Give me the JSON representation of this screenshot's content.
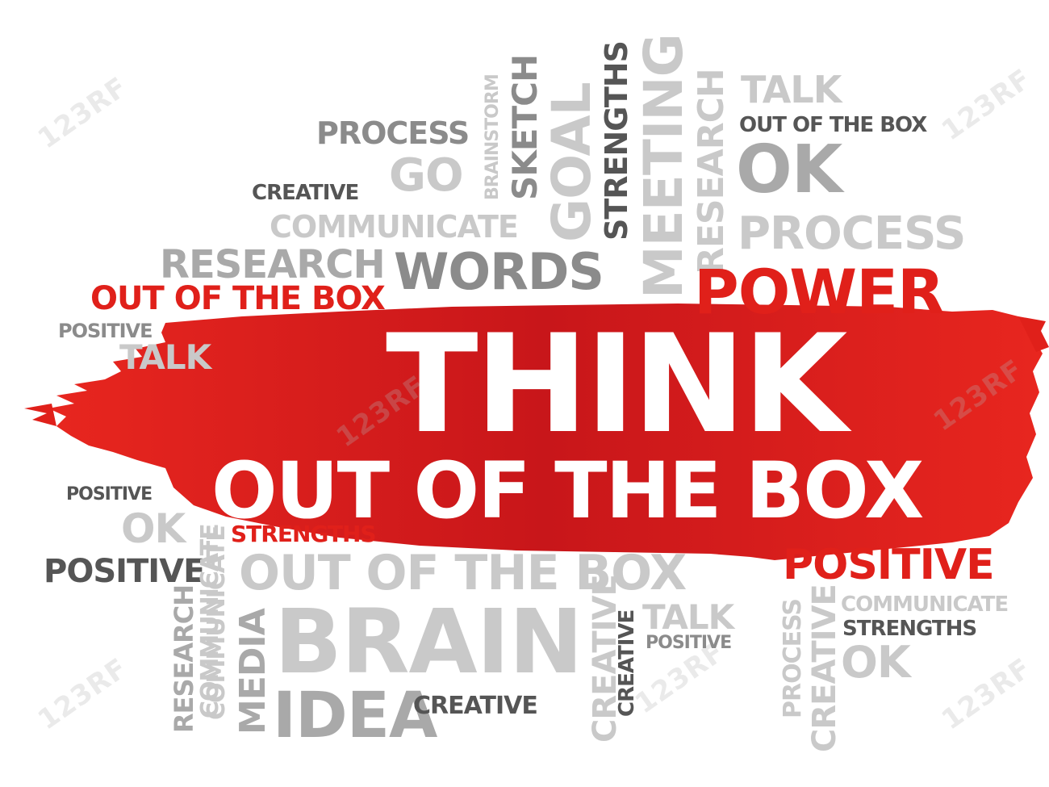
{
  "colors": {
    "red": "#e0201a",
    "dark": "#555555",
    "mid": "#8b8b8b",
    "light": "#c9c9c9",
    "white": "#ffffff"
  },
  "headline": {
    "line1": "THINK",
    "line2": "OUT OF THE BOX"
  },
  "watermark": "123RF",
  "words": {
    "process_top": "PROCESS",
    "go": "GO",
    "brainstorm": "BRAINSTORM",
    "sketch": "SKETCH",
    "goal": "GOAL",
    "strengths_v": "STRENGTHS",
    "meeting": "MEETING",
    "research_v": "RESEARCH",
    "talk_top": "TALK",
    "ootb_top": "OUT OF THE BOX",
    "ok_top": "OK",
    "creative_top": "CREATIVE",
    "communicate_top": "COMMUNICATE",
    "process_right": "PROCESS",
    "research_mid": "RESEARCH",
    "words": "WORDS",
    "power": "POWER",
    "ootb_red": "OUT OF THE BOX",
    "positive_left": "POSITIVE",
    "talk_left": "TALK",
    "positive_small": "POSITIVE",
    "ok_left": "OK",
    "strengths_red": "STRENGTHS",
    "positive_dark": "POSITIVE",
    "communicate_v": "COMMUNICATE",
    "research_v2": "RESEARCH",
    "communicate_v2": "COMMUNICATE",
    "media": "MEDIA",
    "ootb_gray": "OUT OF THE BOX",
    "brain": "BRAIN",
    "idea": "IDEA",
    "creative_bottom": "CREATIVE",
    "creative_v1": "CREATIVE",
    "creative_v2": "CREATIVE",
    "talk_bottom": "TALK",
    "positive_bottom": "POSITIVE",
    "positive_red": "POSITIVE",
    "process_v": "PROCESS",
    "creative_v3": "CREATIVE",
    "communicate_right": "COMMUNICATE",
    "strengths_right": "STRENGTHS",
    "ok_right": "OK"
  }
}
